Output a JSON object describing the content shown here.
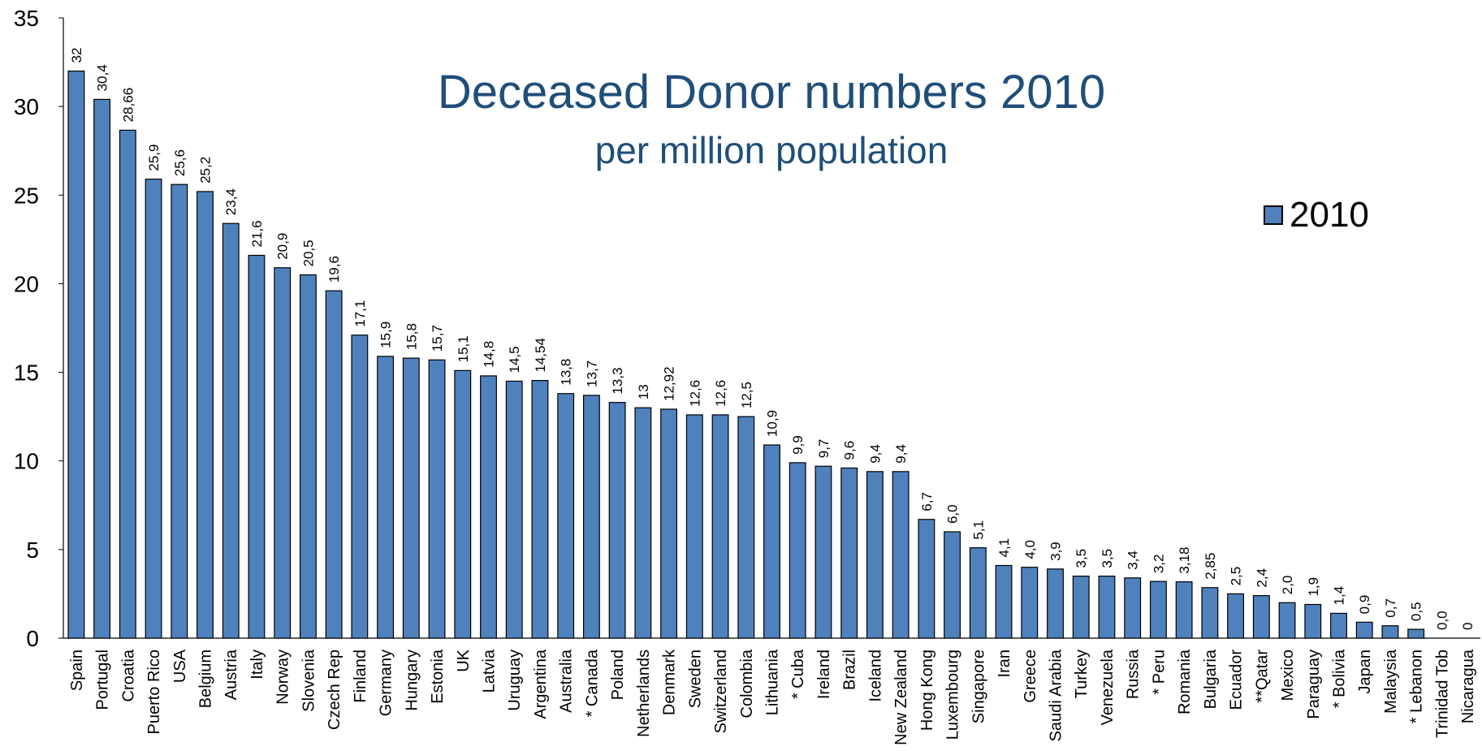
{
  "chart_data": {
    "type": "bar",
    "title": "Deceased Donor numbers 2010",
    "subtitle": "per million population",
    "ylim": [
      0,
      35
    ],
    "yticks": [
      0,
      5,
      10,
      15,
      20,
      25,
      30,
      35
    ],
    "legend": {
      "position": "top-right"
    },
    "series": [
      {
        "name": "2010",
        "color": "#4F81BD"
      }
    ],
    "categories": [
      "Spain",
      "Portugal",
      "Croatia",
      "Puerto Rico",
      "USA",
      "Belgium",
      "Austria",
      "Italy",
      "Norway",
      "Slovenia",
      "Czech Rep",
      "Finland",
      "Germany",
      "Hungary",
      "Estonia",
      "UK",
      "Latvia",
      "Uruguay",
      "Argentina",
      "Australia",
      "* Canada",
      "Poland",
      "Netherlands",
      "Denmark",
      "Sweden",
      "Switzerland",
      "Colombia",
      "Lithuania",
      "* Cuba",
      "Ireland",
      "Brazil",
      "Iceland",
      "New Zealand",
      "Hong Kong",
      "Luxembourg",
      "Singapore",
      "Iran",
      "Greece",
      "Saudi Arabia",
      "Turkey",
      "Venezuela",
      "Russia",
      "* Peru",
      "Romania",
      "Bulgaria",
      "Ecuador",
      "**Qatar",
      "Mexico",
      "Paraguay",
      "* Bolivia",
      "Japan",
      "Malaysia",
      "* Lebanon",
      "Trinidad Tob",
      "Nicaragua"
    ],
    "values": [
      32,
      30.4,
      28.66,
      25.9,
      25.6,
      25.2,
      23.4,
      21.6,
      20.9,
      20.5,
      19.6,
      17.1,
      15.9,
      15.8,
      15.7,
      15.1,
      14.8,
      14.5,
      14.54,
      13.8,
      13.7,
      13.3,
      13,
      12.92,
      12.6,
      12.6,
      12.5,
      10.9,
      9.9,
      9.7,
      9.6,
      9.4,
      9.4,
      6.7,
      6.0,
      5.1,
      4.1,
      4.0,
      3.9,
      3.5,
      3.5,
      3.4,
      3.2,
      3.18,
      2.85,
      2.5,
      2.4,
      2.0,
      1.9,
      1.4,
      0.9,
      0.7,
      0.5,
      0.0,
      0
    ],
    "data_labels": [
      "32",
      "30,4",
      "28,66",
      "25,9",
      "25,6",
      "25,2",
      "23,4",
      "21,6",
      "20,9",
      "20,5",
      "19,6",
      "17,1",
      "15,9",
      "15,8",
      "15,7",
      "15,1",
      "14,8",
      "14,5",
      "14,54",
      "13,8",
      "13,7",
      "13,3",
      "13",
      "12,92",
      "12,6",
      "12,6",
      "12,5",
      "10,9",
      "9,9",
      "9,7",
      "9,6",
      "9,4",
      "9,4",
      "6,7",
      "6,0",
      "5,1",
      "4,1",
      "4,0",
      "3,9",
      "3,5",
      "3,5",
      "3,4",
      "3,2",
      "3,18",
      "2,85",
      "2,5",
      "2,4",
      "2,0",
      "1,9",
      "1,4",
      "0,9",
      "0,7",
      "0,5",
      "0,0",
      "0"
    ]
  }
}
